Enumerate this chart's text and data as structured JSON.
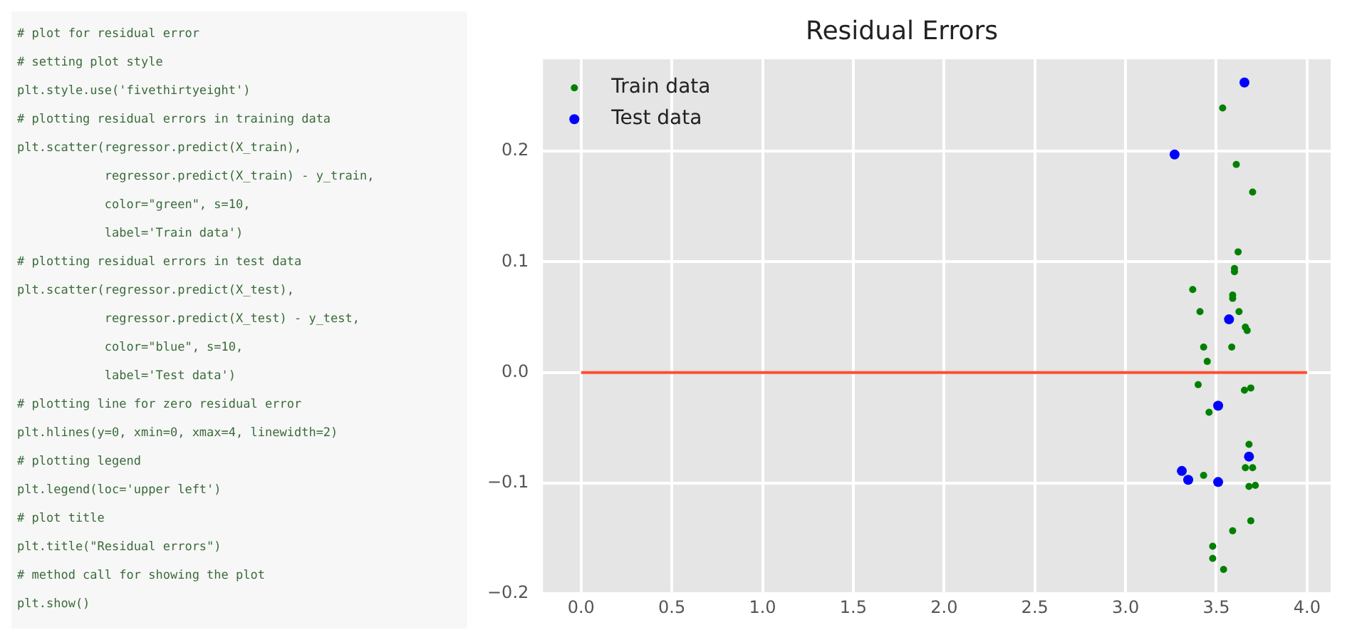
{
  "chart_data": {
    "type": "scatter",
    "title": "Residual Errors",
    "marker": "circle",
    "grid": true,
    "legend": "top left",
    "xlim": [
      -0.21,
      4.13
    ],
    "xticks": [
      {
        "value": 0,
        "label": "0.0"
      },
      {
        "value": 0.5,
        "label": "0.5"
      },
      {
        "value": 1,
        "label": "1.0"
      },
      {
        "value": 1.5,
        "label": "1.5"
      },
      {
        "value": 2,
        "label": "2.0"
      },
      {
        "value": 2.5,
        "label": "2.5"
      },
      {
        "value": 3,
        "label": "3.0"
      },
      {
        "value": 3.5,
        "label": "3.5"
      },
      {
        "value": 4,
        "label": "4.0"
      }
    ],
    "ylim": [
      -0.2,
      0.283
    ],
    "yticks": [
      {
        "value": -0.2,
        "label": "−0.2"
      },
      {
        "value": -0.1,
        "label": "−0.1"
      },
      {
        "value": 0,
        "label": "0.0"
      },
      {
        "value": 0.1,
        "label": "0.1"
      },
      {
        "value": 0.2,
        "label": "0.2"
      }
    ],
    "series": [
      {
        "name": "Train data",
        "color": "#008000",
        "x": [
          3.535,
          3.61,
          3.7,
          3.62,
          3.6,
          3.6,
          3.37,
          3.59,
          3.59,
          3.41,
          3.625,
          3.66,
          3.67,
          3.43,
          3.585,
          3.45,
          3.4,
          3.655,
          3.69,
          3.46,
          3.68,
          3.66,
          3.7,
          3.43,
          3.68,
          3.715,
          3.69,
          3.59,
          3.48,
          3.48,
          3.54
        ],
        "values": [
          0.239,
          0.188,
          0.163,
          0.109,
          0.094,
          0.091,
          0.075,
          0.07,
          0.067,
          0.055,
          0.055,
          0.041,
          0.038,
          0.023,
          0.023,
          0.01,
          -0.011,
          -0.016,
          -0.014,
          -0.036,
          -0.065,
          -0.086,
          -0.086,
          -0.093,
          -0.103,
          -0.102,
          -0.134,
          -0.143,
          -0.157,
          -0.168,
          -0.178
        ]
      },
      {
        "name": "Test data",
        "color": "#0000ff",
        "x": [
          3.655,
          3.27,
          3.57,
          3.51,
          3.31,
          3.345,
          3.51,
          3.68
        ],
        "values": [
          0.262,
          0.197,
          0.048,
          -0.03,
          -0.089,
          -0.097,
          -0.099,
          -0.076
        ]
      },
      {
        "type": "line",
        "marker": "none",
        "color": "#fc4f30",
        "x": [
          0,
          4
        ],
        "values": [
          0,
          0
        ]
      }
    ],
    "annotations": [
      "# plot for residual error",
      "# setting plot style",
      "plt.style.use('fivethirtyeight')",
      "# plotting residual errors in training data",
      "plt.scatter(regressor.predict(X_train),",
      "            regressor.predict(X_train) - y_train,",
      "            color=\"green\", s=10,",
      "            label='Train data')",
      "# plotting residual errors in test data",
      "plt.scatter(regressor.predict(X_test),",
      "            regressor.predict(X_test) - y_test,",
      "            color=\"blue\", s=10,",
      "            label='Test data')",
      "# plotting line for zero residual error",
      "plt.hlines(y=0, xmin=0, xmax=4, linewidth=2)",
      "# plotting legend",
      "plt.legend(loc='upper left')",
      "# plot title",
      "plt.title(\"Residual errors\")",
      "# method call for showing the plot",
      "plt.show()"
    ]
  }
}
